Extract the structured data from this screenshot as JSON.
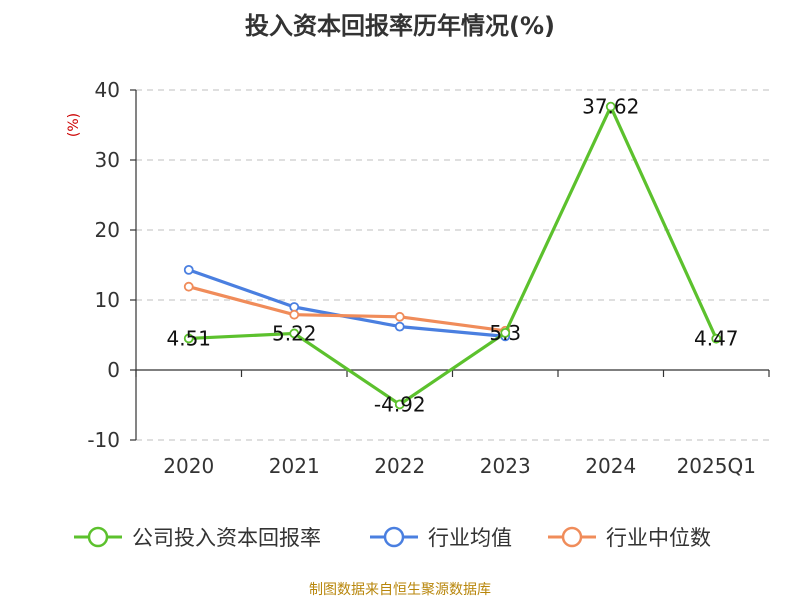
{
  "chart_data": {
    "type": "line",
    "title": "投入资本回报率历年情况(%)",
    "ylabel": "(%)",
    "xlabel": "",
    "categories": [
      "2020",
      "2021",
      "2022",
      "2023",
      "2024",
      "2025Q1"
    ],
    "ylim": [
      -10,
      40
    ],
    "yticks": [
      -10,
      0,
      10,
      20,
      30,
      40
    ],
    "grid": true,
    "legend_position": "bottom",
    "series": [
      {
        "name": "公司投入资本回报率",
        "color": "#5cc12d",
        "values": [
          4.51,
          5.22,
          -4.92,
          5.3,
          37.62,
          4.47
        ],
        "labels": [
          "4.51",
          "5.22",
          "-4.92",
          "5.3",
          "37.62",
          "4.47"
        ]
      },
      {
        "name": "行业均值",
        "color": "#4a7fe0",
        "values": [
          14.3,
          9.0,
          6.2,
          4.8,
          null,
          null
        ]
      },
      {
        "name": "行业中位数",
        "color": "#f08c5a",
        "values": [
          11.9,
          7.9,
          7.6,
          5.6,
          null,
          null
        ]
      }
    ]
  },
  "source": "制图数据来自恒生聚源数据库"
}
